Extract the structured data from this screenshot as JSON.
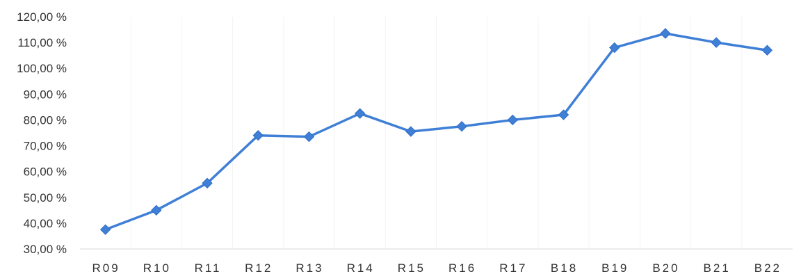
{
  "chart_data": {
    "type": "line",
    "title": "",
    "xlabel": "",
    "ylabel": "",
    "categories": [
      "R09",
      "R10",
      "R11",
      "R12",
      "R13",
      "R14",
      "R15",
      "R16",
      "R17",
      "B18",
      "B19",
      "B20",
      "B21",
      "B22"
    ],
    "series": [
      {
        "values": [
          37.5,
          45.0,
          55.5,
          74.0,
          73.5,
          82.5,
          75.5,
          77.5,
          80.0,
          82.0,
          108.0,
          113.5,
          110.0,
          107.0
        ]
      }
    ],
    "ylim": [
      30,
      120
    ],
    "y_ticks": [
      "30,00 %",
      "40,00 %",
      "50,00 %",
      "60,00 %",
      "70,00 %",
      "80,00 %",
      "90,00 %",
      "100,00 %",
      "110,00 %",
      "120,00 %"
    ],
    "grid": "vertical-faint",
    "legend": "none",
    "colors": {
      "line": "#3f7fd6",
      "marker": "#3f7fd6"
    }
  }
}
